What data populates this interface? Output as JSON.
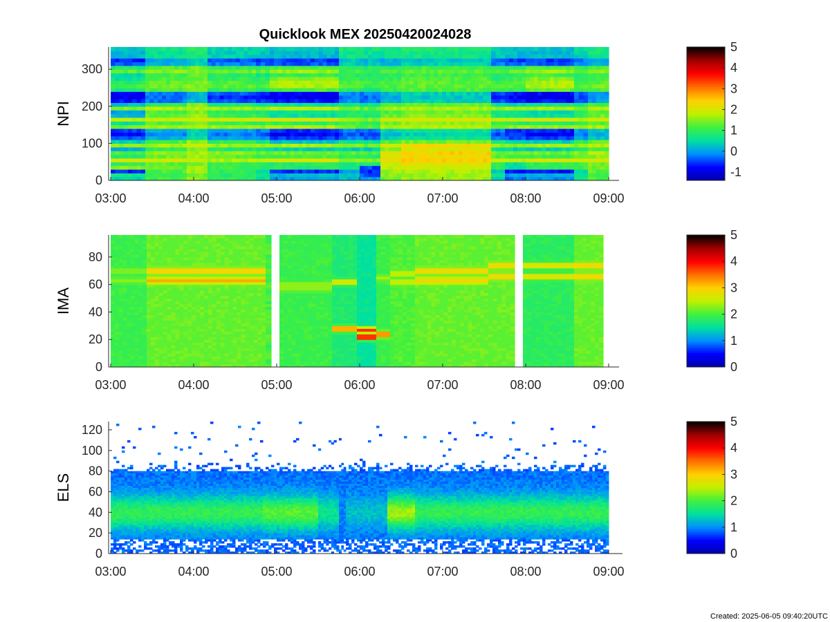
{
  "figure": {
    "title": "Quicklook MEX 20250420024028",
    "footer": "Created: 2025-06-05 09:40:20UTC"
  },
  "chart_data": [
    {
      "type": "heatmap",
      "name": "npi-spectrogram",
      "ylabel": "NPI",
      "xlim": [
        "02:58",
        "09:10"
      ],
      "x_ticks": [
        "03:00",
        "04:00",
        "05:00",
        "06:00",
        "07:00",
        "08:00",
        "09:00"
      ],
      "ylim": [
        0,
        360
      ],
      "y_ticks": [
        0,
        100,
        200,
        300
      ],
      "colorbar": {
        "range": [
          -1.4,
          5
        ],
        "ticks": [
          -1,
          0,
          1,
          2,
          3,
          4,
          5
        ]
      },
      "colormap": [
        "#0000a8",
        "#0000ff",
        "#0090ff",
        "#00e0a0",
        "#40f040",
        "#c0f000",
        "#ffd000",
        "#ff7000",
        "#ff0000",
        "#a00000",
        "#000000"
      ],
      "data_extent": {
        "x": [
          "03:00",
          "09:00"
        ],
        "y": [
          0,
          360
        ]
      },
      "time_segments": [
        {
          "start": "03:00",
          "end": "03:25",
          "bands": [
            0.4,
            0.7,
            -0.6,
            1.5,
            1.0,
            2.0,
            0.9,
            1.2,
            0.1,
            1.6,
            0.4,
            -0.4,
            -0.8,
            -0.5,
            1.4,
            0.6,
            1.8,
            0.2,
            0.0,
            1.5,
            0.3,
            -0.7,
            -0.9,
            -0.8,
            0.8,
            1.1,
            0.9,
            0.6,
            0.4,
            1.3,
            0.8,
            -0.4,
            -0.6,
            0.2,
            0.2,
            0.3
          ]
        },
        {
          "start": "03:25",
          "end": "03:55",
          "bands": [
            1.1,
            1.0,
            1.2,
            1.3,
            1.3,
            1.9,
            1.4,
            1.6,
            1.0,
            1.7,
            1.2,
            0.1,
            -0.1,
            0.1,
            1.6,
            1.2,
            1.9,
            1.3,
            1.2,
            1.7,
            1.0,
            -0.2,
            -0.3,
            -0.2,
            1.2,
            1.4,
            1.3,
            1.2,
            1.1,
            1.5,
            1.2,
            0.1,
            0.0,
            0.6,
            0.6,
            0.7
          ]
        },
        {
          "start": "03:55",
          "end": "04:10",
          "bands": [
            1.5,
            1.4,
            1.6,
            1.6,
            1.5,
            1.8,
            1.6,
            1.7,
            1.4,
            1.8,
            1.6,
            0.6,
            0.4,
            0.5,
            1.7,
            1.5,
            1.9,
            1.6,
            1.5,
            1.8,
            1.5,
            0.2,
            0.1,
            0.2,
            1.4,
            1.5,
            1.5,
            1.4,
            1.3,
            1.5,
            1.4,
            0.4,
            0.3,
            0.8,
            0.8,
            0.9
          ]
        },
        {
          "start": "04:10",
          "end": "04:45",
          "bands": [
            1.0,
            0.9,
            1.0,
            1.1,
            1.1,
            1.7,
            1.3,
            1.5,
            0.8,
            1.6,
            1.0,
            0.0,
            -0.2,
            0.0,
            1.6,
            1.1,
            1.9,
            1.1,
            1.0,
            1.6,
            0.8,
            -0.4,
            -0.6,
            -0.4,
            1.0,
            1.3,
            1.2,
            1.0,
            0.9,
            1.4,
            1.0,
            -0.2,
            -0.4,
            0.4,
            0.4,
            0.5
          ]
        },
        {
          "start": "04:45",
          "end": "04:55",
          "bands": [
            0.6,
            0.6,
            0.5,
            1.0,
            1.0,
            1.8,
            1.1,
            1.4,
            0.6,
            1.6,
            0.8,
            -0.2,
            -0.4,
            -0.2,
            1.6,
            1.0,
            2.0,
            0.9,
            0.8,
            1.6,
            0.6,
            -0.5,
            -0.7,
            -0.6,
            0.9,
            1.2,
            1.1,
            0.9,
            0.7,
            1.3,
            0.9,
            -0.3,
            -0.5,
            0.3,
            0.3,
            0.4
          ]
        },
        {
          "start": "04:55",
          "end": "05:45",
          "bands": [
            0.0,
            0.2,
            -0.6,
            0.9,
            0.9,
            2.0,
            1.2,
            1.4,
            0.4,
            1.7,
            0.3,
            -0.5,
            -0.8,
            -0.6,
            1.7,
            1.0,
            2.0,
            0.6,
            0.6,
            1.8,
            0.6,
            -0.7,
            -0.9,
            -0.8,
            1.2,
            1.7,
            1.7,
            1.5,
            1.0,
            1.6,
            1.2,
            -0.4,
            -0.5,
            0.2,
            0.2,
            0.3
          ]
        },
        {
          "start": "05:45",
          "end": "06:00",
          "bands": [
            0.2,
            0.3,
            0.0,
            0.8,
            0.8,
            1.6,
            1.0,
            1.3,
            0.4,
            1.5,
            0.6,
            -0.2,
            -0.4,
            -0.2,
            1.3,
            1.1,
            1.6,
            0.9,
            0.9,
            1.4,
            0.8,
            -0.1,
            -0.2,
            -0.1,
            0.9,
            1.2,
            1.2,
            1.0,
            0.9,
            1.1,
            1.0,
            0.4,
            0.3,
            0.7,
            0.7,
            0.8
          ]
        },
        {
          "start": "06:00",
          "end": "06:15",
          "bands": [
            0.0,
            -0.4,
            -0.6,
            -0.5,
            0.7,
            1.5,
            0.9,
            1.2,
            0.4,
            1.4,
            0.6,
            -0.3,
            -0.5,
            -0.3,
            1.2,
            1.0,
            1.5,
            0.8,
            0.8,
            1.3,
            0.7,
            -0.2,
            -0.3,
            -0.2,
            0.8,
            1.1,
            1.1,
            0.9,
            0.8,
            1.0,
            0.9,
            0.3,
            0.2,
            0.6,
            0.6,
            0.7
          ]
        },
        {
          "start": "06:15",
          "end": "06:30",
          "bands": [
            1.4,
            1.5,
            1.6,
            1.8,
            1.9,
            2.2,
            2.0,
            2.1,
            1.5,
            2.0,
            1.2,
            0.4,
            0.2,
            0.4,
            1.7,
            1.4,
            1.9,
            1.3,
            1.2,
            1.6,
            1.1,
            0.1,
            0.0,
            0.2,
            1.0,
            1.2,
            1.2,
            1.0,
            0.9,
            1.2,
            1.0,
            0.2,
            0.1,
            0.6,
            0.6,
            0.7
          ]
        },
        {
          "start": "06:30",
          "end": "07:35",
          "bands": [
            1.6,
            1.6,
            1.7,
            1.9,
            2.1,
            2.4,
            2.3,
            2.4,
            2.0,
            2.3,
            1.4,
            0.6,
            0.4,
            0.6,
            1.8,
            1.6,
            2.0,
            1.5,
            1.4,
            1.7,
            1.3,
            0.4,
            0.3,
            0.4,
            1.2,
            1.3,
            1.3,
            1.2,
            1.1,
            1.3,
            1.1,
            0.4,
            0.3,
            0.7,
            0.7,
            0.8
          ]
        },
        {
          "start": "07:35",
          "end": "07:45",
          "bands": [
            0.5,
            0.6,
            0.4,
            1.0,
            1.0,
            1.8,
            1.2,
            1.4,
            0.6,
            1.6,
            0.8,
            -0.2,
            -0.4,
            -0.2,
            1.5,
            1.0,
            1.8,
            0.8,
            0.8,
            1.5,
            0.6,
            -0.4,
            -0.6,
            -0.5,
            1.0,
            1.2,
            1.1,
            0.9,
            0.8,
            1.3,
            0.9,
            -0.2,
            -0.4,
            0.3,
            0.3,
            0.4
          ]
        },
        {
          "start": "07:45",
          "end": "08:00",
          "bands": [
            -0.3,
            0.0,
            -0.7,
            0.6,
            0.6,
            1.8,
            1.0,
            1.3,
            0.4,
            1.6,
            0.5,
            -0.4,
            -0.6,
            -0.5,
            1.5,
            1.0,
            1.9,
            0.7,
            0.6,
            1.6,
            0.5,
            -0.6,
            -0.8,
            -0.7,
            1.0,
            1.3,
            1.2,
            1.1,
            0.9,
            1.3,
            0.9,
            -0.3,
            -0.5,
            0.2,
            0.2,
            0.3
          ]
        },
        {
          "start": "08:00",
          "end": "08:35",
          "bands": [
            -0.1,
            0.1,
            -0.7,
            1.0,
            1.0,
            2.0,
            1.1,
            1.4,
            0.4,
            1.7,
            0.4,
            -0.5,
            -0.8,
            -0.6,
            1.6,
            0.9,
            2.0,
            0.6,
            0.5,
            1.7,
            0.7,
            -0.7,
            -0.9,
            -0.8,
            1.3,
            1.7,
            1.7,
            1.5,
            1.1,
            1.6,
            1.2,
            -0.4,
            -0.5,
            0.2,
            0.2,
            0.3
          ]
        },
        {
          "start": "08:35",
          "end": "08:45",
          "bands": [
            0.6,
            0.7,
            0.5,
            1.1,
            1.1,
            1.8,
            1.3,
            1.5,
            0.8,
            1.6,
            1.0,
            0.0,
            -0.2,
            0.0,
            1.5,
            1.1,
            1.8,
            1.0,
            0.9,
            1.5,
            0.8,
            -0.3,
            -0.4,
            -0.3,
            1.0,
            1.2,
            1.2,
            1.0,
            0.9,
            1.3,
            1.0,
            0.0,
            -0.2,
            0.4,
            0.4,
            0.5
          ]
        },
        {
          "start": "08:45",
          "end": "09:00",
          "bands": [
            1.2,
            1.1,
            1.3,
            1.4,
            1.4,
            2.0,
            1.5,
            1.7,
            1.2,
            1.8,
            1.3,
            0.3,
            0.1,
            0.3,
            1.7,
            1.3,
            1.9,
            1.4,
            1.3,
            1.7,
            1.2,
            0.0,
            -0.1,
            0.0,
            1.2,
            1.4,
            1.3,
            1.2,
            1.1,
            1.5,
            1.2,
            0.2,
            0.1,
            0.7,
            0.7,
            0.8
          ]
        }
      ]
    },
    {
      "type": "heatmap",
      "name": "ima-spectrogram",
      "ylabel": "IMA",
      "xlim": [
        "02:58",
        "09:10"
      ],
      "x_ticks": [
        "03:00",
        "04:00",
        "05:00",
        "06:00",
        "07:00",
        "08:00",
        "09:00"
      ],
      "ylim": [
        0,
        96
      ],
      "y_ticks": [
        0,
        20,
        40,
        60,
        80
      ],
      "colorbar": {
        "range": [
          0,
          5
        ],
        "ticks": [
          0,
          1,
          2,
          3,
          4,
          5
        ]
      },
      "colormap": [
        "#0000a8",
        "#0000ff",
        "#0090ff",
        "#00e0a0",
        "#40f040",
        "#c0f000",
        "#ffd000",
        "#ff7000",
        "#ff0000",
        "#a00000",
        "#000000"
      ],
      "data_extent": {
        "x": [
          "03:00",
          "09:00"
        ],
        "y": [
          0,
          96
        ]
      },
      "gaps": [
        [
          "04:56",
          "05:02"
        ],
        [
          "07:52",
          "07:58"
        ],
        [
          "08:56",
          "09:00"
        ]
      ],
      "time_segments": [
        {
          "start": "03:00",
          "end": "03:26",
          "background": 1.9,
          "lines": [
            {
              "y": 70,
              "value": 2.3
            },
            {
              "y": 63,
              "value": 2.3
            }
          ]
        },
        {
          "start": "03:26",
          "end": "04:52",
          "background": 2.1,
          "lines": [
            {
              "y": 70,
              "value": 3.1
            },
            {
              "y": 63,
              "value": 3.2
            }
          ]
        },
        {
          "start": "04:52",
          "end": "04:56",
          "background": 2.0,
          "lines": []
        },
        {
          "start": "05:02",
          "end": "05:40",
          "background": 1.9,
          "lines": [
            {
              "y": 60,
              "value": 2.4
            },
            {
              "y": 57,
              "value": 2.3
            }
          ]
        },
        {
          "start": "05:40",
          "end": "05:58",
          "background": 1.7,
          "lines": [
            {
              "y": 62,
              "value": 2.8
            },
            {
              "y": 28,
              "value": 3.5
            }
          ]
        },
        {
          "start": "05:58",
          "end": "06:12",
          "background": 1.5,
          "lines": [
            {
              "y": 22,
              "value": 4.3
            },
            {
              "y": 27,
              "value": 3.8
            }
          ]
        },
        {
          "start": "06:12",
          "end": "06:22",
          "background": 1.9,
          "lines": [
            {
              "y": 24,
              "value": 3.6
            },
            {
              "y": 65,
              "value": 2.4
            }
          ]
        },
        {
          "start": "06:22",
          "end": "06:40",
          "background": 2.0,
          "lines": [
            {
              "y": 68,
              "value": 2.6
            },
            {
              "y": 62,
              "value": 2.6
            }
          ]
        },
        {
          "start": "06:40",
          "end": "07:33",
          "background": 2.1,
          "lines": [
            {
              "y": 70,
              "value": 3.0
            },
            {
              "y": 63,
              "value": 3.0
            }
          ]
        },
        {
          "start": "07:33",
          "end": "07:52",
          "background": 2.1,
          "lines": [
            {
              "y": 74,
              "value": 3.0
            },
            {
              "y": 66,
              "value": 3.0
            }
          ]
        },
        {
          "start": "07:58",
          "end": "08:35",
          "background": 1.8,
          "lines": [
            {
              "y": 74,
              "value": 2.9
            },
            {
              "y": 66,
              "value": 2.9
            }
          ]
        },
        {
          "start": "08:35",
          "end": "08:56",
          "background": 2.1,
          "lines": [
            {
              "y": 74,
              "value": 3.0
            },
            {
              "y": 66,
              "value": 3.0
            }
          ]
        }
      ]
    },
    {
      "type": "heatmap",
      "name": "els-spectrogram",
      "ylabel": "ELS",
      "xlim": [
        "02:58",
        "09:10"
      ],
      "x_ticks": [
        "03:00",
        "04:00",
        "05:00",
        "06:00",
        "07:00",
        "08:00",
        "09:00"
      ],
      "ylim": [
        0,
        128
      ],
      "y_ticks": [
        0,
        20,
        40,
        60,
        80,
        100,
        120
      ],
      "colorbar": {
        "range": [
          0,
          5
        ],
        "ticks": [
          0,
          1,
          2,
          3,
          4,
          5
        ]
      },
      "colormap": [
        "#0000a8",
        "#0000ff",
        "#0090ff",
        "#00e0a0",
        "#40f040",
        "#c0f000",
        "#ffd000",
        "#ff7000",
        "#ff0000",
        "#a00000",
        "#000000"
      ],
      "data_extent": {
        "x": [
          "03:00",
          "09:00"
        ],
        "y": [
          0,
          128
        ]
      },
      "profile": {
        "center": 40,
        "peak": 2.0,
        "upper_edge": 80,
        "lower_edge": 15
      },
      "time_segments": [
        {
          "start": "03:00",
          "end": "04:50",
          "peak": 1.9
        },
        {
          "start": "04:50",
          "end": "05:30",
          "peak": 2.1
        },
        {
          "start": "05:30",
          "end": "05:45",
          "peak": 1.6
        },
        {
          "start": "05:45",
          "end": "05:50",
          "peak": 1.0
        },
        {
          "start": "05:50",
          "end": "06:20",
          "peak": 1.3
        },
        {
          "start": "06:20",
          "end": "06:40",
          "peak": 2.4
        },
        {
          "start": "06:40",
          "end": "09:00",
          "peak": 1.9
        }
      ]
    }
  ]
}
